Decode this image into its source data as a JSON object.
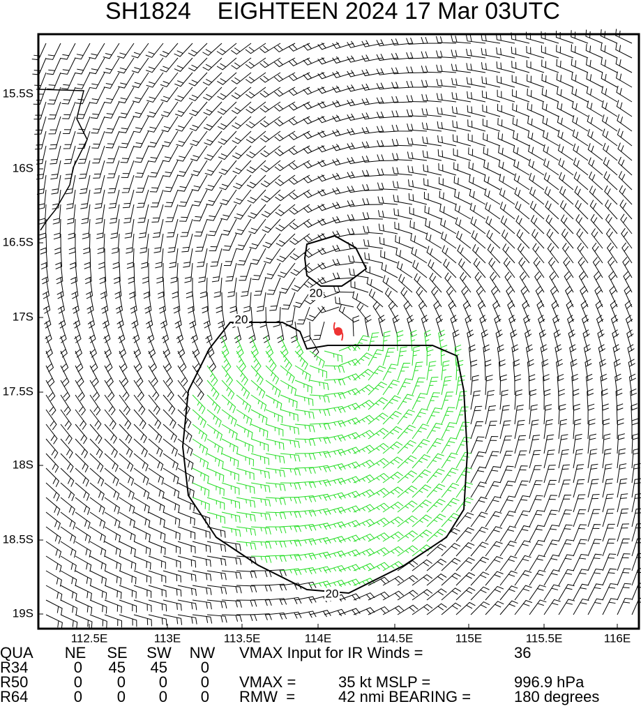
{
  "header": {
    "title": "SH1824    EIGHTEEN 2024 17 Mar 03UTC"
  },
  "lat_labels": [
    "15.5S",
    "16S",
    "16.5S",
    "17S",
    "17.5S",
    "18S",
    "18.5S",
    "19S"
  ],
  "lon_labels": [
    "112.5E",
    "113E",
    "113.5E",
    "114E",
    "114.5E",
    "115E",
    "115.5E",
    "116E"
  ],
  "contour_labels": [
    "20",
    "20",
    "20"
  ],
  "table": {
    "rows": [
      [
        "QUA",
        "NE",
        "SE",
        "SW",
        "NW",
        "VMAX Input for IR Winds =",
        "",
        "36"
      ],
      [
        "R34",
        "0",
        "45",
        "45",
        "0",
        "",
        "",
        ""
      ],
      [
        "R50",
        "0",
        "0",
        "0",
        "0",
        "VMAX =",
        "35 kt MSLP =",
        "996.9 hPa"
      ],
      [
        "R64",
        "0",
        "0",
        "0",
        "0",
        "RMW  =",
        "42 nmi BEARING =",
        "180 degrees"
      ]
    ]
  }
}
